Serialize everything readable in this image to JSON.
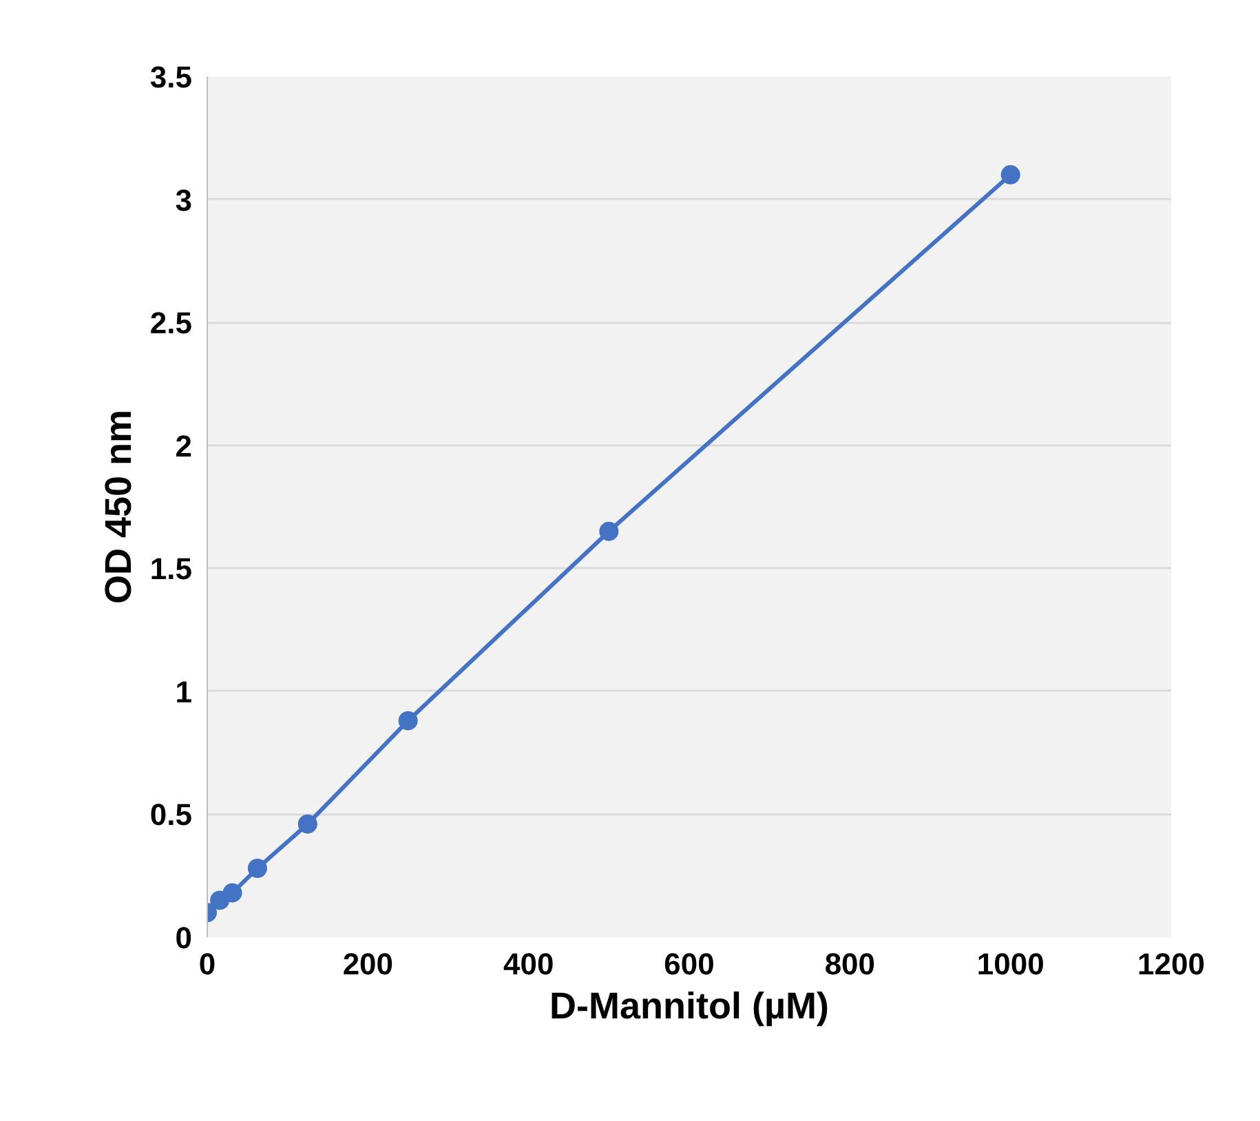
{
  "chart_data": {
    "type": "line",
    "xlabel": "D-Mannitol (µM)",
    "ylabel": "OD 450 nm",
    "x": [
      0,
      15.6,
      31.25,
      62.5,
      125,
      250,
      500,
      1000
    ],
    "series": [
      {
        "color": "#4472c4",
        "values": [
          0.1,
          0.15,
          0.18,
          0.28,
          0.46,
          0.88,
          1.65,
          3.1
        ]
      }
    ],
    "xlim": [
      0,
      1200
    ],
    "xticks": [
      0,
      200,
      400,
      600,
      800,
      1000,
      1200
    ],
    "ylim": [
      0,
      3.5
    ],
    "yticks": [
      0,
      0.5,
      1,
      1.5,
      2,
      2.5,
      3,
      3.5
    ],
    "grid": "y",
    "marker": "circle",
    "line_style": "solid"
  }
}
